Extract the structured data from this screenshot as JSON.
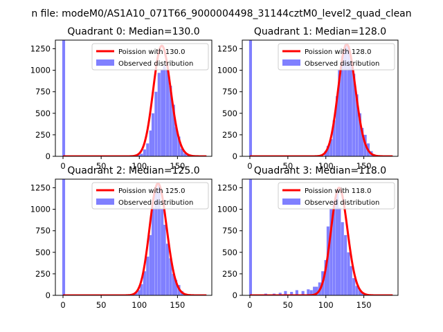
{
  "figure": {
    "suptitle": "n file: modeM0/AS1A10_071T66_9000004498_31144cztM0_level2_quad_clean"
  },
  "colors": {
    "hist": "#8080ff",
    "poisson": "#ff0000",
    "axis": "#000000"
  },
  "chart_data": [
    {
      "type": "bar",
      "title": "Quadrant 0: Median=130.0",
      "xlim": [
        -10,
        195
      ],
      "ylim": [
        0,
        1350
      ],
      "xticks": [
        0,
        50,
        100,
        150
      ],
      "yticks": [
        0,
        250,
        500,
        750,
        1000,
        1250
      ],
      "legend": {
        "placement": "top-right",
        "poisson_label": "Poission with 130.0",
        "observed_label": "Observed distribution"
      },
      "series": [
        {
          "name": "Poission with 130.0",
          "kind": "line",
          "lambda": 130,
          "scale": 1285
        },
        {
          "name": "Observed distribution",
          "kind": "histogram",
          "bin_width": 3.75,
          "x_start": [
            -1,
            94,
            98,
            101,
            105,
            109,
            113,
            116,
            120,
            124,
            128,
            131,
            135,
            139,
            143,
            146,
            150,
            154,
            158,
            161,
            165,
            169
          ],
          "values": [
            1350,
            5,
            15,
            30,
            80,
            150,
            300,
            500,
            750,
            970,
            1000,
            1050,
            1000,
            820,
            600,
            340,
            230,
            90,
            35,
            10,
            5,
            2
          ]
        }
      ]
    },
    {
      "type": "bar",
      "title": "Quadrant 1: Median=128.0",
      "xlim": [
        -10,
        195
      ],
      "ylim": [
        0,
        1350
      ],
      "xticks": [
        0,
        50,
        100,
        150
      ],
      "yticks": [
        0,
        250,
        500,
        750,
        1000,
        1250
      ],
      "legend": {
        "placement": "top-right",
        "poisson_label": "Poission with 128.0",
        "observed_label": "Observed distribution"
      },
      "series": [
        {
          "name": "Poission with 128.0",
          "kind": "line",
          "lambda": 128,
          "scale": 1300
        },
        {
          "name": "Observed distribution",
          "kind": "histogram",
          "bin_width": 3.75,
          "x_start": [
            -1,
            98,
            101,
            105,
            109,
            113,
            116,
            120,
            124,
            128,
            131,
            135,
            139,
            143,
            146,
            150,
            154,
            158,
            161,
            165
          ],
          "values": [
            1350,
            60,
            120,
            200,
            420,
            700,
            1000,
            1170,
            1300,
            1280,
            1100,
            960,
            720,
            500,
            330,
            250,
            150,
            60,
            25,
            10
          ]
        }
      ]
    },
    {
      "type": "bar",
      "title": "Quadrant 2: Median=125.0",
      "xlim": [
        -10,
        195
      ],
      "ylim": [
        0,
        1350
      ],
      "xticks": [
        0,
        50,
        100,
        150
      ],
      "yticks": [
        0,
        250,
        500,
        750,
        1000,
        1250
      ],
      "legend": {
        "placement": "top-right",
        "poisson_label": "Poission with 125.0",
        "observed_label": "Observed distribution"
      },
      "series": [
        {
          "name": "Poission with 125.0",
          "kind": "line",
          "lambda": 125,
          "scale": 1300
        },
        {
          "name": "Observed distribution",
          "kind": "histogram",
          "bin_width": 3.75,
          "x_start": [
            -1,
            90,
            94,
            98,
            101,
            105,
            109,
            113,
            116,
            120,
            124,
            128,
            131,
            135,
            139,
            143,
            146,
            150,
            154,
            158,
            161
          ],
          "values": [
            1350,
            10,
            30,
            60,
            130,
            280,
            450,
            700,
            1020,
            1200,
            1280,
            1000,
            820,
            600,
            430,
            250,
            180,
            120,
            50,
            20,
            8
          ]
        }
      ]
    },
    {
      "type": "bar",
      "title": "Quadrant 3: Median=118.0",
      "xlim": [
        -10,
        195
      ],
      "ylim": [
        0,
        1350
      ],
      "xticks": [
        0,
        50,
        100,
        150
      ],
      "yticks": [
        0,
        250,
        500,
        750,
        1000,
        1250
      ],
      "legend": {
        "placement": "top-right",
        "poisson_label": "Poission with 118.0",
        "observed_label": "Observed distribution"
      },
      "series": [
        {
          "name": "Poission with 118.0",
          "kind": "line",
          "lambda": 118,
          "scale": 1250
        },
        {
          "name": "Observed distribution",
          "kind": "histogram",
          "bin_width": 3.75,
          "x_start": [
            -1,
            19,
            30,
            38,
            45,
            53,
            60,
            68,
            75,
            79,
            83,
            86,
            90,
            94,
            98,
            101,
            105,
            109,
            113,
            116,
            120,
            124,
            128,
            131,
            135,
            139,
            143,
            146,
            150,
            154,
            158
          ],
          "values": [
            1350,
            20,
            20,
            30,
            50,
            40,
            60,
            50,
            70,
            60,
            100,
            100,
            150,
            280,
            410,
            800,
            1000,
            1100,
            1200,
            1020,
            850,
            700,
            500,
            340,
            200,
            110,
            60,
            30,
            15,
            8,
            5
          ]
        }
      ]
    }
  ]
}
